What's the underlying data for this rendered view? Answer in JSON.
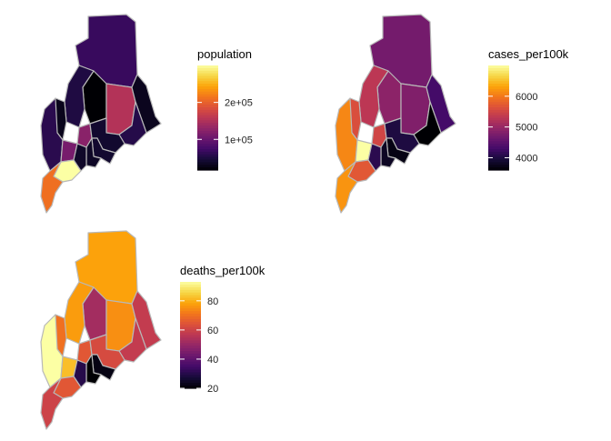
{
  "chart_data": [
    {
      "type": "choropleth",
      "variable": "population",
      "colorscale": "inferno",
      "range": [
        17000,
        300000
      ],
      "ticks": [
        {
          "value": 100000,
          "label": "1e+05"
        },
        {
          "value": 200000,
          "label": "2e+05"
        }
      ],
      "legend_title": "population",
      "counties": [
        {
          "name": "Aroostook",
          "value": 67000
        },
        {
          "name": "Piscataquis",
          "value": 17000
        },
        {
          "name": "Penobscot",
          "value": 152000
        },
        {
          "name": "Washington",
          "value": 31000
        },
        {
          "name": "Hancock",
          "value": 55000
        },
        {
          "name": "Somerset",
          "value": 51000
        },
        {
          "name": "Franklin",
          "value": 30000
        },
        {
          "name": "Oxford",
          "value": 58000
        },
        {
          "name": "Kennebec",
          "value": 123000
        },
        {
          "name": "Waldo",
          "value": 40000
        },
        {
          "name": "Androscoggin",
          "value": 111000
        },
        {
          "name": "Knox",
          "value": 40000
        },
        {
          "name": "Lincoln",
          "value": 35000
        },
        {
          "name": "Sagadahoc",
          "value": 37000
        },
        {
          "name": "Cumberland",
          "value": 300000
        },
        {
          "name": "York",
          "value": 210000
        }
      ]
    },
    {
      "type": "choropleth",
      "variable": "cases_per100k",
      "colorscale": "inferno",
      "range": [
        3600,
        7000
      ],
      "ticks": [
        {
          "value": 4000,
          "label": "4000"
        },
        {
          "value": 5000,
          "label": "5000"
        },
        {
          "value": 6000,
          "label": "6000"
        }
      ],
      "legend_title": "cases_per100k",
      "counties": [
        {
          "name": "Aroostook",
          "value": 4700
        },
        {
          "name": "Piscataquis",
          "value": 4900
        },
        {
          "name": "Penobscot",
          "value": 4800
        },
        {
          "name": "Washington",
          "value": 4300
        },
        {
          "name": "Hancock",
          "value": 3600
        },
        {
          "name": "Somerset",
          "value": 5300
        },
        {
          "name": "Franklin",
          "value": 5600
        },
        {
          "name": "Oxford",
          "value": 6100
        },
        {
          "name": "Kennebec",
          "value": 5500
        },
        {
          "name": "Waldo",
          "value": 4000
        },
        {
          "name": "Androscoggin",
          "value": 7000
        },
        {
          "name": "Knox",
          "value": 3700
        },
        {
          "name": "Lincoln",
          "value": 3800
        },
        {
          "name": "Sagadahoc",
          "value": 4100
        },
        {
          "name": "Cumberland",
          "value": 5700
        },
        {
          "name": "York",
          "value": 6200
        }
      ]
    },
    {
      "type": "choropleth",
      "variable": "deaths_per100k",
      "colorscale": "inferno",
      "range": [
        20,
        93
      ],
      "ticks": [
        {
          "value": 20,
          "label": "20"
        },
        {
          "value": 40,
          "label": "40"
        },
        {
          "value": 60,
          "label": "60"
        },
        {
          "value": 80,
          "label": "80"
        }
      ],
      "legend_title": "deaths_per100k",
      "counties": [
        {
          "name": "Aroostook",
          "value": 78
        },
        {
          "name": "Piscataquis",
          "value": 52
        },
        {
          "name": "Penobscot",
          "value": 75
        },
        {
          "name": "Washington",
          "value": 58
        },
        {
          "name": "Hancock",
          "value": 58
        },
        {
          "name": "Somerset",
          "value": 77
        },
        {
          "name": "Franklin",
          "value": 70
        },
        {
          "name": "Oxford",
          "value": 93
        },
        {
          "name": "Kennebec",
          "value": 65
        },
        {
          "name": "Waldo",
          "value": 62
        },
        {
          "name": "Androscoggin",
          "value": 82
        },
        {
          "name": "Knox",
          "value": 22
        },
        {
          "name": "Lincoln",
          "value": 20
        },
        {
          "name": "Sagadahoc",
          "value": 30
        },
        {
          "name": "Cumberland",
          "value": 65
        },
        {
          "name": "York",
          "value": 60
        }
      ]
    }
  ]
}
